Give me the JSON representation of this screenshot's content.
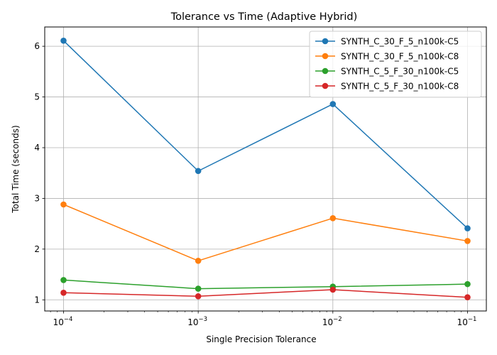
{
  "chart_data": {
    "type": "line",
    "title": "Tolerance vs Time (Adaptive Hybrid)",
    "xlabel": "Single Precision Tolerance",
    "ylabel": "Total Time (seconds)",
    "xscale": "log",
    "x": [
      0.0001,
      0.001,
      0.01,
      0.1
    ],
    "x_tick_labels": [
      {
        "base": "10",
        "exp": "−4"
      },
      {
        "base": "10",
        "exp": "−3"
      },
      {
        "base": "10",
        "exp": "−2"
      },
      {
        "base": "10",
        "exp": "−1"
      }
    ],
    "xlim": [
      7.25e-05,
      0.138
    ],
    "ylim": [
      0.78,
      6.38
    ],
    "yticks": [
      1,
      2,
      3,
      4,
      5,
      6
    ],
    "grid": true,
    "legend_position": "upper-right",
    "series": [
      {
        "name": "SYNTH_C_30_F_5_n100k-C5",
        "color": "#1f77b4",
        "values": [
          6.11,
          3.54,
          4.86,
          2.41
        ]
      },
      {
        "name": "SYNTH_C_30_F_5_n100k-C8",
        "color": "#ff7f0e",
        "values": [
          2.88,
          1.77,
          2.61,
          2.16
        ]
      },
      {
        "name": "SYNTH_C_5_F_30_n100k-C5",
        "color": "#2ca02c",
        "values": [
          1.39,
          1.22,
          1.26,
          1.31
        ]
      },
      {
        "name": "SYNTH_C_5_F_30_n100k-C8",
        "color": "#d62728",
        "values": [
          1.14,
          1.07,
          1.2,
          1.05
        ]
      }
    ]
  }
}
